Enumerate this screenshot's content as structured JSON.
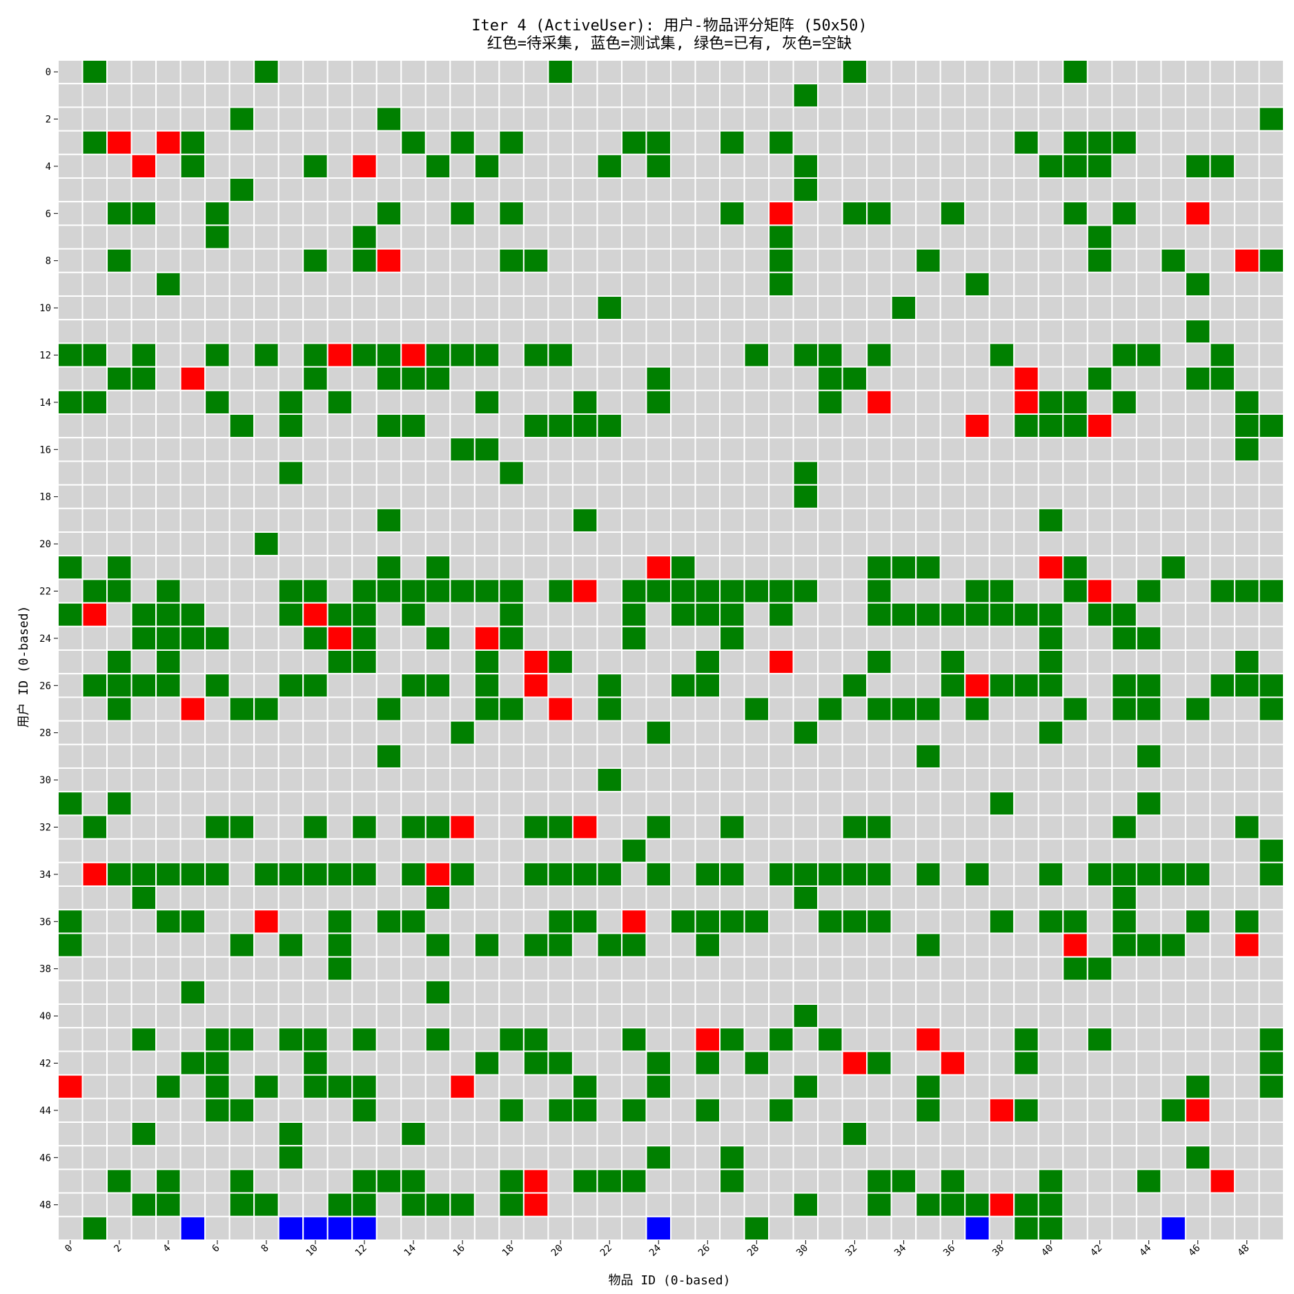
{
  "chart_data": {
    "type": "heatmap",
    "title": "Iter 4 (ActiveUser): 用户-物品评分矩阵 (50x50)",
    "subtitle": "红色=待采集, 蓝色=测试集, 绿色=已有, 灰色=空缺",
    "xlabel": "物品 ID (0-based)",
    "ylabel": "用户 ID (0-based)",
    "n_rows": 50,
    "n_cols": 50,
    "x_ticks": [
      0,
      2,
      4,
      6,
      8,
      10,
      12,
      14,
      16,
      18,
      20,
      22,
      24,
      26,
      28,
      30,
      32,
      34,
      36,
      38,
      40,
      42,
      44,
      46,
      48
    ],
    "y_ticks": [
      0,
      2,
      4,
      6,
      8,
      10,
      12,
      14,
      16,
      18,
      20,
      22,
      24,
      26,
      28,
      30,
      32,
      34,
      36,
      38,
      40,
      42,
      44,
      46,
      48
    ],
    "colors": {
      "empty": "#d3d3d3",
      "existing": "#008000",
      "to_collect": "#ff0000",
      "test": "#0000ff",
      "grid": "#ffffff"
    },
    "legend": {
      "existing": "绿色=已有",
      "to_collect": "红色=待采集",
      "test": "蓝色=测试集",
      "empty": "灰色=空缺"
    },
    "cells": {
      "existing": {
        "0": [
          1,
          8,
          20,
          32,
          41
        ],
        "1": [
          30
        ],
        "2": [
          7,
          13,
          49
        ],
        "3": [
          1,
          5,
          14,
          16,
          18,
          23,
          24,
          27,
          29,
          39,
          41,
          42,
          43
        ],
        "4": [
          5,
          10,
          15,
          17,
          22,
          24,
          30,
          40,
          41,
          42,
          46,
          47
        ],
        "5": [
          7,
          30
        ],
        "6": [
          2,
          3,
          6,
          13,
          16,
          18,
          27,
          32,
          33,
          36,
          41,
          43
        ],
        "7": [
          6,
          12,
          29,
          42
        ],
        "8": [
          2,
          10,
          12,
          18,
          19,
          29,
          35,
          42,
          45,
          49
        ],
        "9": [
          4,
          29,
          37,
          46
        ],
        "10": [
          22,
          34
        ],
        "11": [
          46
        ],
        "12": [
          0,
          1,
          3,
          6,
          8,
          10,
          12,
          13,
          15,
          16,
          17,
          19,
          20,
          28,
          30,
          31,
          33,
          38,
          43,
          44,
          47
        ],
        "13": [
          2,
          3,
          10,
          13,
          14,
          15,
          24,
          31,
          32,
          42,
          46,
          47
        ],
        "14": [
          0,
          1,
          6,
          9,
          11,
          17,
          21,
          24,
          31,
          40,
          41,
          43,
          48
        ],
        "15": [
          7,
          9,
          13,
          14,
          19,
          20,
          21,
          22,
          39,
          40,
          41,
          48,
          49
        ],
        "16": [
          16,
          17,
          48
        ],
        "17": [
          9,
          18,
          30
        ],
        "18": [
          30
        ],
        "19": [
          13,
          21,
          40
        ],
        "20": [
          8
        ],
        "21": [
          0,
          2,
          13,
          15,
          25,
          33,
          34,
          35,
          41,
          45
        ],
        "22": [
          1,
          2,
          4,
          9,
          10,
          12,
          13,
          14,
          15,
          16,
          17,
          18,
          20,
          23,
          24,
          25,
          26,
          27,
          28,
          29,
          30,
          33,
          37,
          38,
          41,
          44,
          47,
          48,
          49
        ],
        "23": [
          0,
          3,
          4,
          5,
          9,
          11,
          12,
          14,
          18,
          23,
          25,
          26,
          27,
          29,
          33,
          34,
          35,
          36,
          37,
          38,
          39,
          40,
          42,
          43
        ],
        "24": [
          3,
          4,
          5,
          6,
          10,
          12,
          15,
          18,
          23,
          27,
          40,
          43,
          44
        ],
        "25": [
          2,
          4,
          11,
          12,
          17,
          20,
          26,
          33,
          36,
          40,
          48
        ],
        "26": [
          1,
          2,
          3,
          4,
          6,
          9,
          10,
          14,
          15,
          17,
          22,
          25,
          26,
          32,
          36,
          38,
          39,
          40,
          43,
          44,
          47,
          48,
          49
        ],
        "27": [
          2,
          7,
          8,
          13,
          17,
          18,
          22,
          28,
          31,
          33,
          34,
          35,
          37,
          41,
          43,
          44,
          46,
          49
        ],
        "28": [
          16,
          24,
          30,
          40
        ],
        "29": [
          13,
          35,
          44
        ],
        "30": [
          22
        ],
        "31": [
          0,
          2,
          38,
          44
        ],
        "32": [
          1,
          6,
          7,
          10,
          12,
          14,
          15,
          19,
          20,
          24,
          27,
          32,
          33,
          43,
          48
        ],
        "33": [
          23,
          49
        ],
        "34": [
          2,
          3,
          4,
          5,
          6,
          8,
          9,
          10,
          11,
          12,
          14,
          16,
          19,
          20,
          21,
          22,
          24,
          26,
          27,
          29,
          30,
          31,
          32,
          33,
          35,
          37,
          40,
          42,
          43,
          44,
          45,
          46,
          49
        ],
        "35": [
          3,
          15,
          30,
          43
        ],
        "36": [
          0,
          4,
          5,
          11,
          13,
          14,
          20,
          21,
          25,
          26,
          27,
          28,
          31,
          32,
          33,
          38,
          40,
          41,
          43,
          46,
          48
        ],
        "37": [
          0,
          7,
          9,
          11,
          15,
          17,
          19,
          20,
          22,
          23,
          26,
          35,
          43,
          44,
          45
        ],
        "38": [
          11,
          41,
          42
        ],
        "39": [
          5,
          15
        ],
        "40": [
          30
        ],
        "41": [
          3,
          6,
          7,
          9,
          10,
          12,
          15,
          18,
          19,
          23,
          27,
          29,
          31,
          39,
          42,
          49
        ],
        "42": [
          5,
          6,
          10,
          17,
          19,
          20,
          24,
          26,
          28,
          33,
          39,
          49
        ],
        "43": [
          4,
          6,
          8,
          10,
          11,
          12,
          21,
          24,
          30,
          35,
          46,
          49
        ],
        "44": [
          6,
          7,
          12,
          18,
          20,
          21,
          23,
          26,
          29,
          35,
          39,
          45
        ],
        "45": [
          3,
          9,
          14,
          32
        ],
        "46": [
          9,
          24,
          27,
          46
        ],
        "47": [
          2,
          4,
          7,
          12,
          13,
          14,
          18,
          21,
          22,
          23,
          27,
          33,
          34,
          36,
          40,
          44
        ],
        "48": [
          3,
          4,
          7,
          8,
          11,
          12,
          14,
          15,
          16,
          18,
          30,
          33,
          35,
          36,
          37,
          39,
          40
        ],
        "49": [
          1,
          28,
          39,
          40
        ]
      },
      "to_collect": {
        "3": [
          2,
          4
        ],
        "4": [
          3,
          12
        ],
        "6": [
          29,
          46
        ],
        "8": [
          13,
          48
        ],
        "12": [
          11,
          14
        ],
        "13": [
          5,
          39
        ],
        "14": [
          33,
          39
        ],
        "15": [
          37,
          42
        ],
        "21": [
          24,
          40
        ],
        "22": [
          21,
          42
        ],
        "23": [
          1,
          10
        ],
        "24": [
          11,
          17
        ],
        "25": [
          19,
          29
        ],
        "26": [
          19,
          37
        ],
        "27": [
          5,
          20
        ],
        "32": [
          16,
          21
        ],
        "34": [
          1,
          15
        ],
        "36": [
          8,
          23
        ],
        "37": [
          41,
          48
        ],
        "41": [
          26,
          35
        ],
        "42": [
          32,
          36
        ],
        "43": [
          0,
          16
        ],
        "44": [
          38,
          46
        ],
        "47": [
          19,
          47
        ],
        "48": [
          19,
          38
        ]
      },
      "test": {
        "49": [
          5,
          9,
          10,
          11,
          12,
          24,
          37,
          45
        ]
      }
    }
  }
}
